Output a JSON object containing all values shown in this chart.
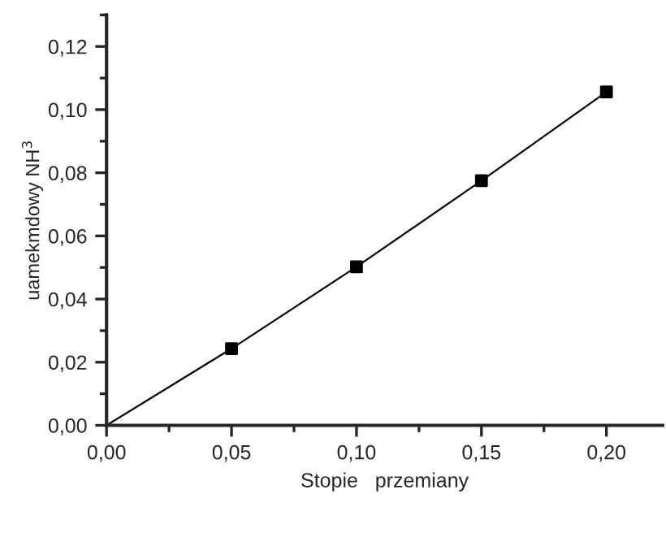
{
  "chart_data": {
    "type": "line",
    "xlabel": "Stopie   przemiany",
    "ylabel": "uamekmdowy NH$^{3}$",
    "series": [
      {
        "color": "#000000",
        "x": [
          0,
          0.05,
          0.1,
          0.15,
          0.2
        ],
        "values": [
          0,
          0.0243,
          0.0502,
          0.0775,
          0.1056
        ],
        "marker": "none"
      },
      {
        "type": "scatter",
        "color": "#000000",
        "x": [
          0.05,
          0.1,
          0.15,
          0.2
        ],
        "values": [
          0.0243,
          0.0502,
          0.0775,
          0.1056
        ],
        "marker": "square"
      }
    ],
    "xlim": [
      0,
      0.2225
    ],
    "ylim": [
      0,
      0.13
    ],
    "xticks": [
      {
        "value": 0,
        "label": "0,00"
      },
      {
        "value": 0.05,
        "label": "0,05"
      },
      {
        "value": 0.1,
        "label": "0,10"
      },
      {
        "value": 0.15,
        "label": "0,15"
      },
      {
        "value": 0.2,
        "label": "0,20"
      }
    ],
    "yticks": [
      {
        "value": 0,
        "label": "0,00"
      },
      {
        "value": 0.02,
        "label": "0,02"
      },
      {
        "value": 0.04,
        "label": "0,04"
      },
      {
        "value": 0.06,
        "label": "0,06"
      },
      {
        "value": 0.08,
        "label": "0,08"
      },
      {
        "value": 0.1,
        "label": "0,10"
      },
      {
        "value": 0.12,
        "label": "0,12"
      }
    ],
    "grid": false,
    "legend": false
  }
}
